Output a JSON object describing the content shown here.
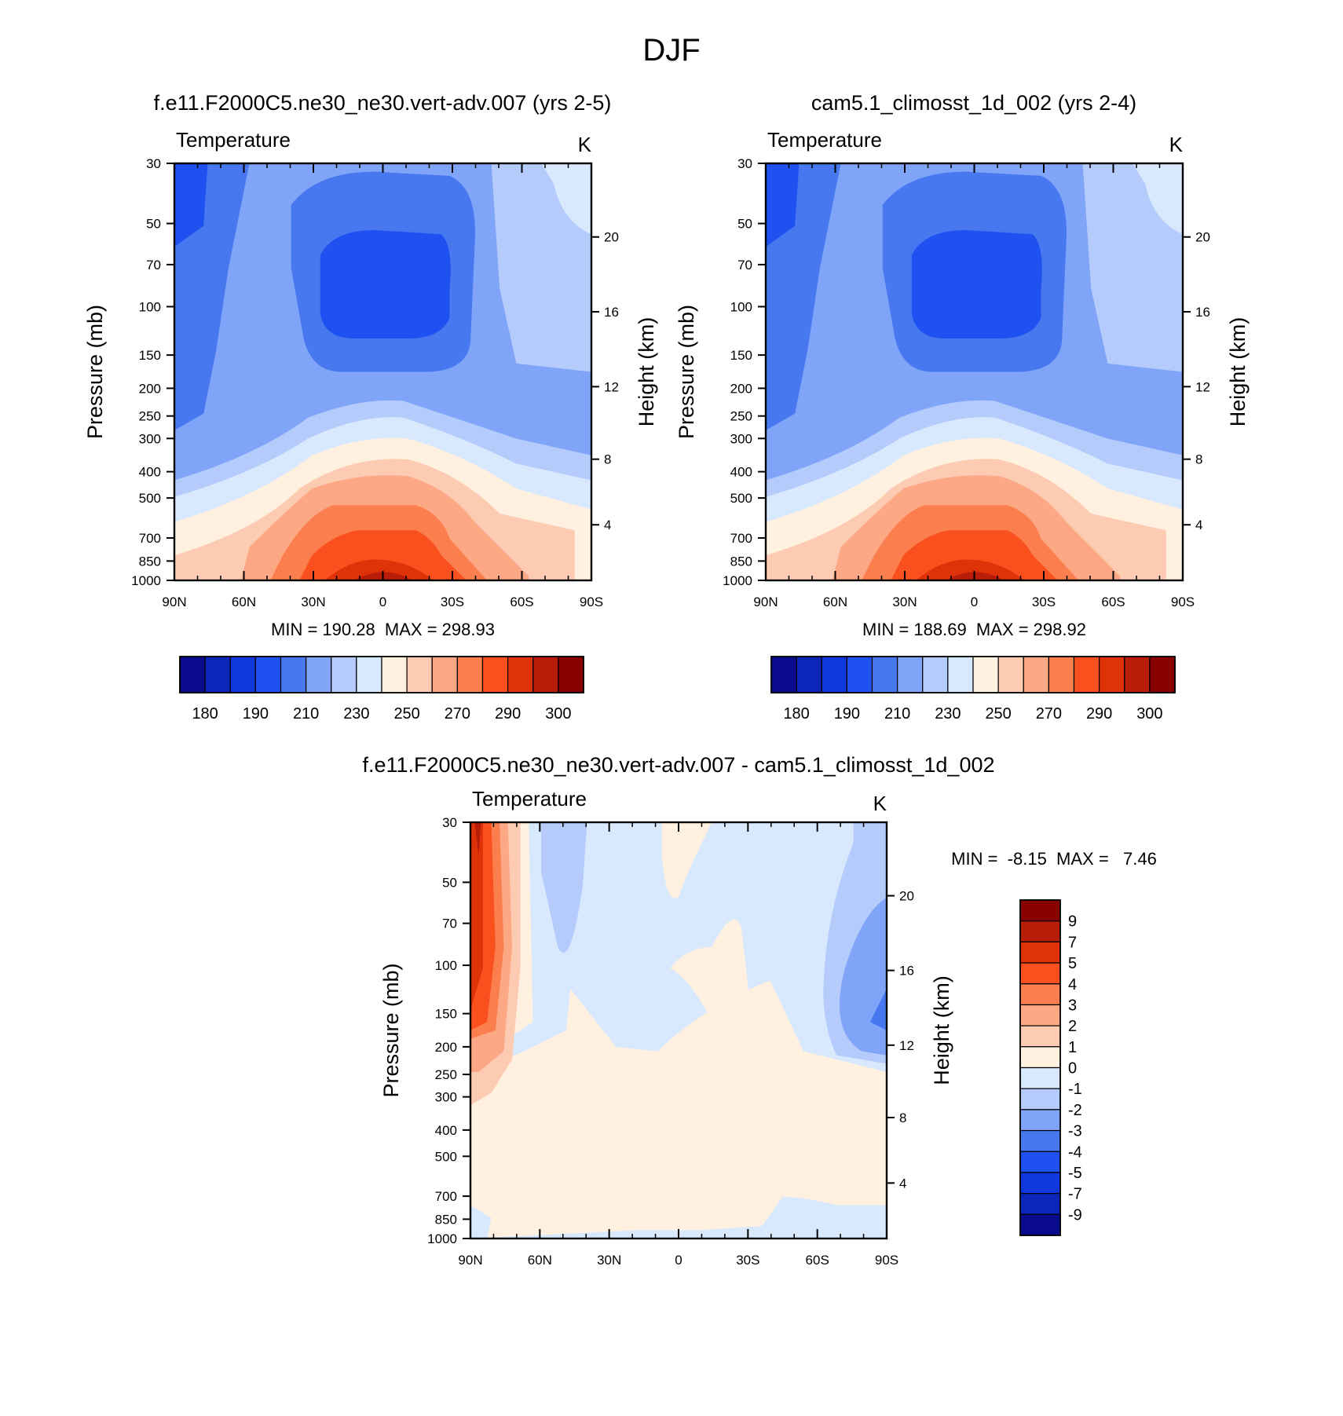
{
  "page_title": "DJF",
  "panels": [
    {
      "title": "f.e11.F2000C5.ne30_ne30.vert-adv.007 (yrs 2-5)",
      "var_label": "Temperature",
      "units": "K",
      "ylabel_left": "Pressure (mb)",
      "ylabel_right": "Height (km)",
      "minmax": "MIN = 190.28  MAX = 298.93"
    },
    {
      "title": "cam5.1_climosst_1d_002 (yrs 2-4)",
      "var_label": "Temperature",
      "units": "K",
      "ylabel_left": "Pressure (mb)",
      "ylabel_right": "Height (km)",
      "minmax": "MIN = 188.69  MAX = 298.92"
    },
    {
      "title": "f.e11.F2000C5.ne30_ne30.vert-adv.007 - cam5.1_climosst_1d_002",
      "var_label": "Temperature",
      "units": "K",
      "ylabel_left": "Pressure (mb)",
      "ylabel_right": "Height (km)",
      "minmax": "MIN =  -8.15  MAX =   7.46"
    }
  ],
  "chart_data": [
    {
      "type": "heatmap",
      "title": "f.e11.F2000C5.ne30_ne30.vert-adv.007 (yrs 2-5)",
      "variable": "Temperature",
      "units": "K",
      "x_ticks": [
        "90N",
        "60N",
        "30N",
        "0",
        "30S",
        "60S",
        "90S"
      ],
      "y_ticks_pressure": [
        "30",
        "50",
        "70",
        "100",
        "150",
        "200",
        "250",
        "300",
        "400",
        "500",
        "700",
        "850",
        "1000"
      ],
      "y_ticks_height": [
        "20",
        "16",
        "12",
        "8",
        "4"
      ],
      "min": 190.28,
      "max": 298.93,
      "colorbar_labels": [
        "180",
        "190",
        "210",
        "230",
        "250",
        "270",
        "290",
        "300"
      ]
    },
    {
      "type": "heatmap",
      "title": "cam5.1_climosst_1d_002 (yrs 2-4)",
      "variable": "Temperature",
      "units": "K",
      "x_ticks": [
        "90N",
        "60N",
        "30N",
        "0",
        "30S",
        "60S",
        "90S"
      ],
      "y_ticks_pressure": [
        "30",
        "50",
        "70",
        "100",
        "150",
        "200",
        "250",
        "300",
        "400",
        "500",
        "700",
        "850",
        "1000"
      ],
      "y_ticks_height": [
        "20",
        "16",
        "12",
        "8",
        "4"
      ],
      "min": 188.69,
      "max": 298.92,
      "colorbar_labels": [
        "180",
        "190",
        "210",
        "230",
        "250",
        "270",
        "290",
        "300"
      ]
    },
    {
      "type": "heatmap",
      "title": "f.e11.F2000C5.ne30_ne30.vert-adv.007 - cam5.1_climosst_1d_002",
      "variable": "Temperature",
      "units": "K",
      "x_ticks": [
        "90N",
        "60N",
        "30N",
        "0",
        "30S",
        "60S",
        "90S"
      ],
      "y_ticks_pressure": [
        "30",
        "50",
        "70",
        "100",
        "150",
        "200",
        "250",
        "300",
        "400",
        "500",
        "700",
        "850",
        "1000"
      ],
      "y_ticks_height": [
        "20",
        "16",
        "12",
        "8",
        "4"
      ],
      "min": -8.15,
      "max": 7.46,
      "colorbar_labels": [
        "9",
        "7",
        "5",
        "4",
        "3",
        "2",
        "1",
        "0",
        "-1",
        "-2",
        "-3",
        "-4",
        "-5",
        "-7",
        "-9"
      ]
    }
  ],
  "colors": {
    "temp_scale": [
      "#0a0a8c",
      "#0b26b8",
      "#1038dc",
      "#1f50f0",
      "#4778f0",
      "#80a4f8",
      "#b4cbfc",
      "#d8e9fe",
      "#fff0e0",
      "#fdcab2",
      "#fca884",
      "#fb7e4e",
      "#f9501e",
      "#e03208",
      "#b71d08",
      "#880000"
    ],
    "diff_scale": [
      "#880000",
      "#b71d08",
      "#e03208",
      "#f9501e",
      "#fb7e4e",
      "#fca884",
      "#fdcab2",
      "#fff0e0",
      "#d8e9fe",
      "#b4cbfc",
      "#80a4f8",
      "#4778f0",
      "#1f50f0",
      "#1038dc",
      "#0b26b8",
      "#0a0a8c"
    ]
  }
}
